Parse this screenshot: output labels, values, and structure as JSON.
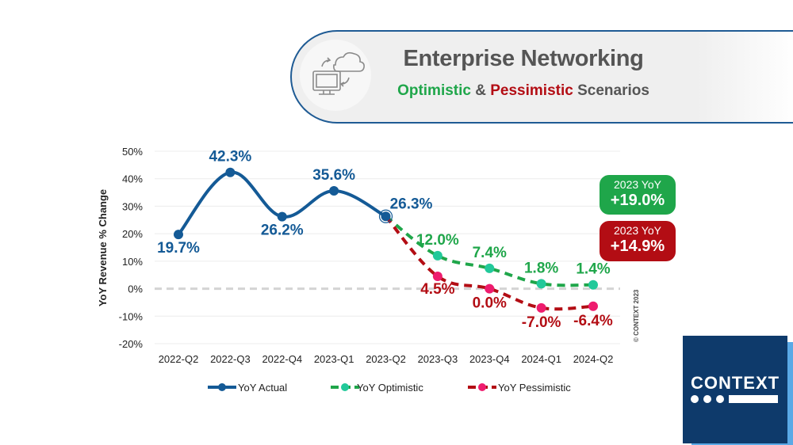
{
  "banner": {
    "icon": "cloud-computer-sync-icon",
    "title": "Enterprise Networking",
    "subtitle_optimistic": "Optimistic",
    "subtitle_and": " & ",
    "subtitle_pessimistic": "Pessimistic",
    "subtitle_rest": " Scenarios"
  },
  "badges": {
    "optimistic": {
      "label": "2023 YoY",
      "value": "+19.0%",
      "color": "#1fa64a"
    },
    "pessimistic": {
      "label": "2023 YoY",
      "value": "+14.9%",
      "color": "#b30d14"
    }
  },
  "copyright": "© CONTEXT 2023",
  "logo": {
    "text": "CONTEXT"
  },
  "chart_data": {
    "type": "line",
    "title": "Enterprise Networking",
    "subtitle": "Optimistic & Pessimistic Scenarios",
    "xlabel": "",
    "ylabel": "YoY Revenue % Change",
    "ylim": [
      -20,
      50
    ],
    "yticks": [
      50,
      40,
      30,
      20,
      10,
      0,
      -10,
      -20
    ],
    "ytick_labels": [
      "50%",
      "40%",
      "30%",
      "20%",
      "10%",
      "0%",
      "-10%",
      "-20%"
    ],
    "grid": true,
    "zero_line": "dashed",
    "categories": [
      "2022-Q2",
      "2022-Q3",
      "2022-Q4",
      "2023-Q1",
      "2023-Q2",
      "2023-Q3",
      "2023-Q4",
      "2024-Q1",
      "2024-Q2"
    ],
    "legend_position": "bottom",
    "series": [
      {
        "name": "YoY Actual",
        "color": "#145a96",
        "marker_color": "#145a96",
        "style": "solid",
        "values": [
          19.7,
          42.3,
          26.2,
          35.6,
          26.3,
          null,
          null,
          null,
          null
        ],
        "labels": [
          "19.7%",
          "42.3%",
          "26.2%",
          "35.6%",
          "26.3%",
          null,
          null,
          null,
          null
        ]
      },
      {
        "name": "YoY Optimistic",
        "color": "#1fa64a",
        "marker_color": "#22c99a",
        "style": "dashed",
        "values": [
          null,
          null,
          null,
          null,
          26.3,
          12.0,
          7.4,
          1.8,
          1.4
        ],
        "labels": [
          null,
          null,
          null,
          null,
          null,
          "12.0%",
          "7.4%",
          "1.8%",
          "1.4%"
        ]
      },
      {
        "name": "YoY Pessimistic",
        "color": "#b30d14",
        "marker_color": "#ee1c6e",
        "style": "dashed",
        "values": [
          null,
          null,
          null,
          null,
          26.3,
          4.5,
          0.0,
          -7.0,
          -6.4
        ],
        "labels": [
          null,
          null,
          null,
          null,
          null,
          "4.5%",
          "0.0%",
          "-7.0%",
          "-6.4%"
        ]
      }
    ],
    "annotations": [
      "2023 YoY +19.0%",
      "2023 YoY +14.9%"
    ]
  }
}
